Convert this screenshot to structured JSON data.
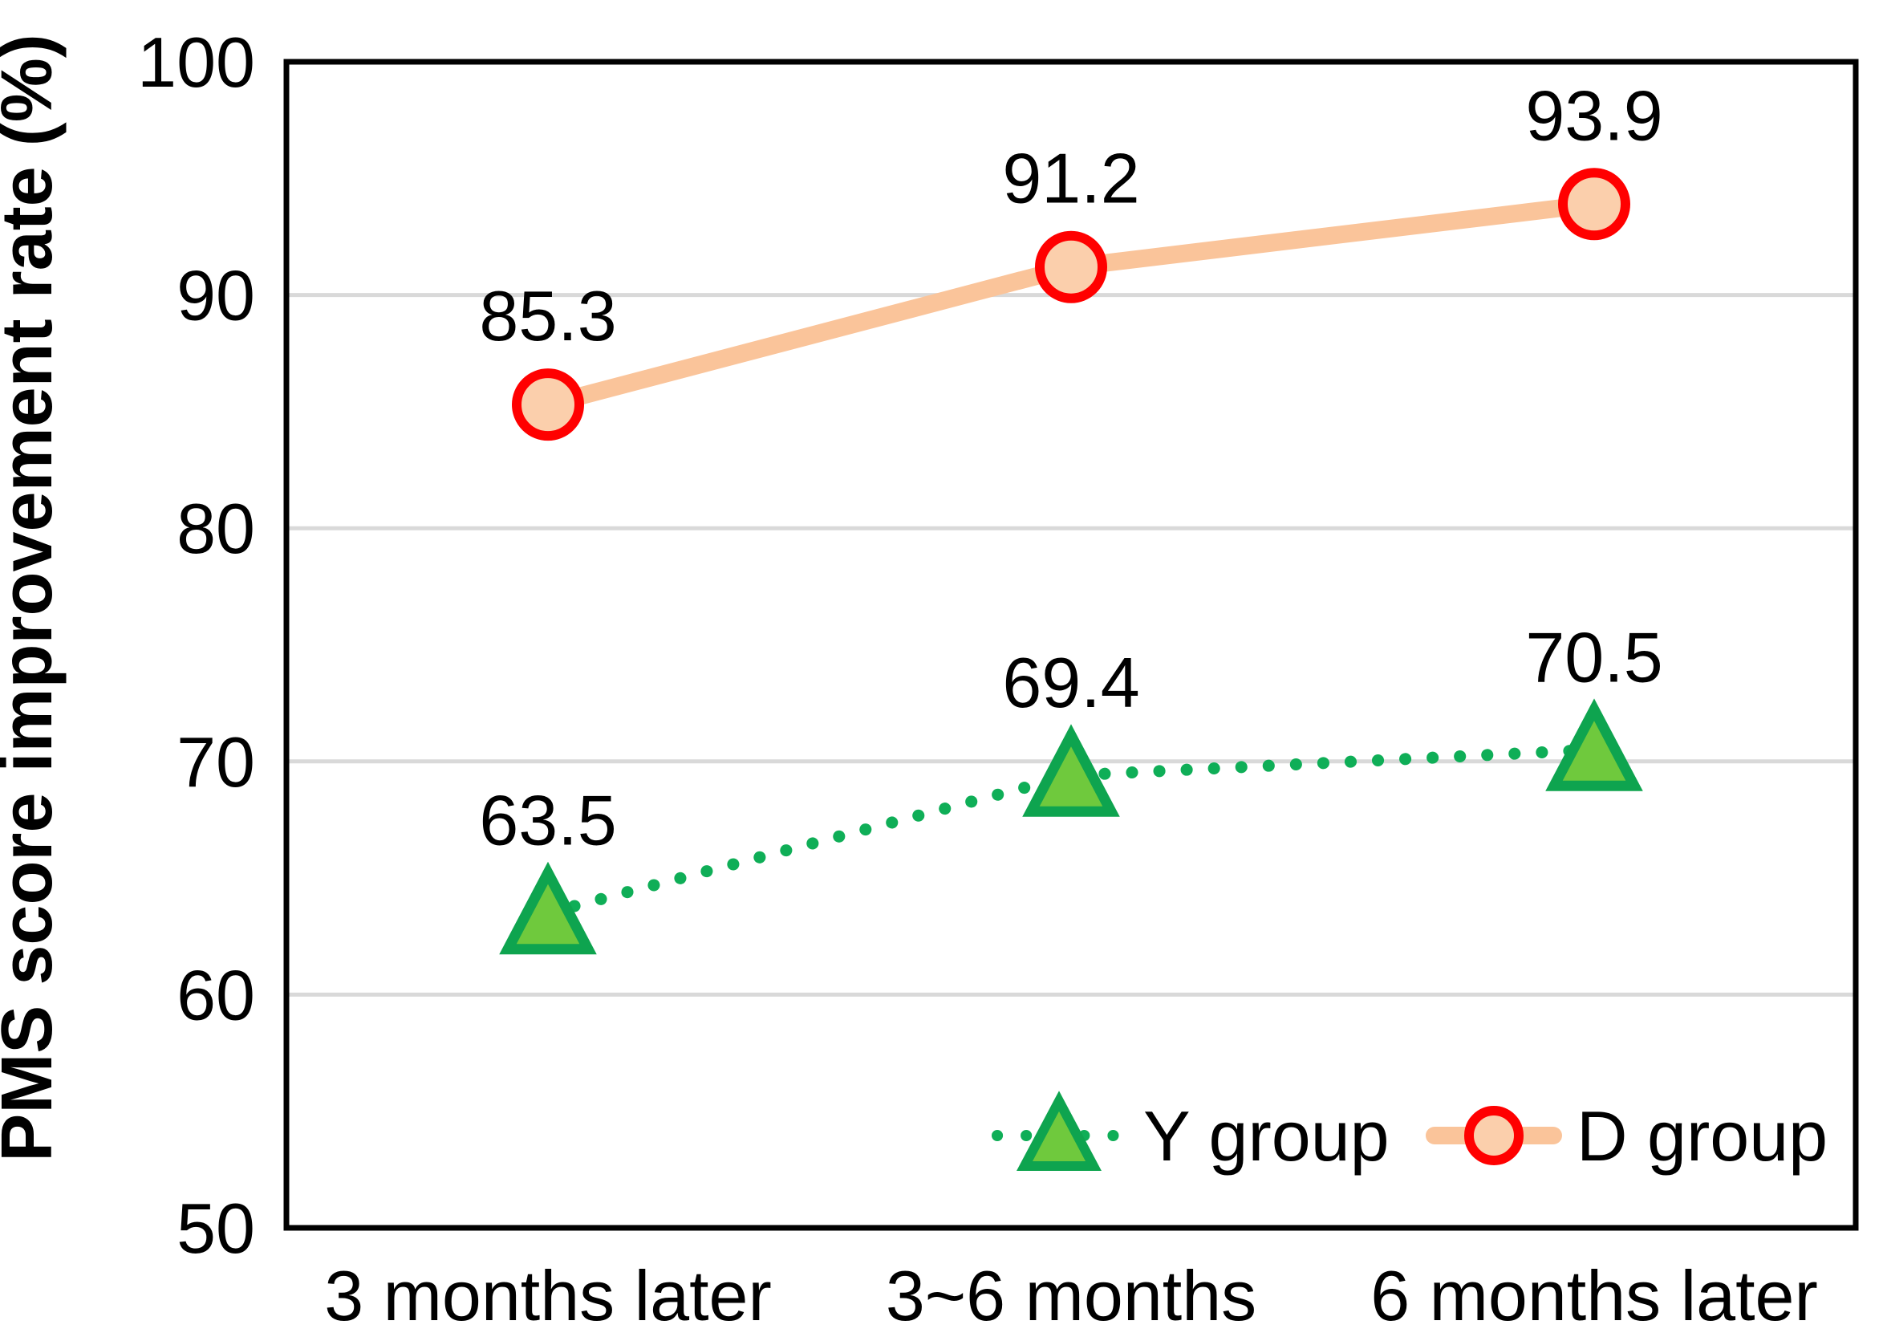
{
  "chart_data": {
    "type": "line",
    "categories": [
      "3 months later",
      "3~6 months",
      "6 months later"
    ],
    "series": [
      {
        "name": "Y group",
        "values": [
          63.5,
          69.4,
          70.5
        ],
        "labels": [
          "63.5",
          "69.4",
          "70.5"
        ],
        "line_color": "#0FAE57",
        "line_style": "dotted",
        "marker": "triangle",
        "marker_fill": "#6FC93D",
        "marker_stroke": "#0EA44F"
      },
      {
        "name": "D group",
        "values": [
          85.3,
          91.2,
          93.9
        ],
        "labels": [
          "85.3",
          "91.2",
          "93.9"
        ],
        "line_color": "#FAC49A",
        "line_style": "solid",
        "marker": "circle",
        "marker_fill": "#FBCFAC",
        "marker_stroke": "#FF0000"
      }
    ],
    "ylabel": "PMS score improvement rate (%)",
    "xlabel": "",
    "ylim": [
      50,
      100
    ],
    "yticks": [
      50,
      60,
      70,
      80,
      90,
      100
    ],
    "grid": true,
    "legend_position": "inside bottom-right",
    "colors": {
      "background": "#FFFFFF",
      "grid": "#D9D9D9",
      "axis": "#000000",
      "text": "#000000"
    }
  }
}
